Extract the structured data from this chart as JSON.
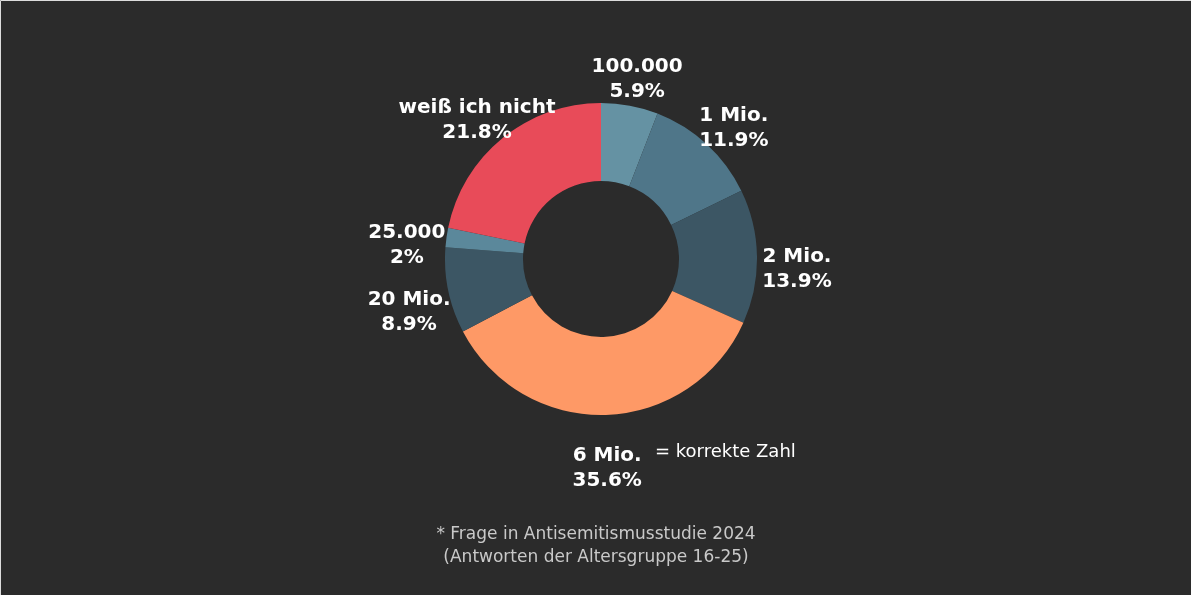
{
  "chart_data": {
    "type": "donut",
    "categories": [
      "100.000",
      "1 Mio.",
      "2 Mio.",
      "6 Mio.",
      "20 Mio.",
      "25.000",
      "weiß ich nicht"
    ],
    "values": [
      5.9,
      11.9,
      13.9,
      35.6,
      8.9,
      2,
      21.8
    ],
    "value_labels": [
      "5.9%",
      "11.9%",
      "13.9%",
      "35.6%",
      "8.9%",
      "2%",
      "21.8%"
    ],
    "colors": [
      "#6592a3",
      "#4f7689",
      "#3c5664",
      "#fe9966",
      "#3c5664",
      "#5b889b",
      "#e84b59"
    ],
    "annotations": [
      "= korrekte Zahl",
      "* Frage in Antisemitismusstudie 2024",
      "(Antworten der Altersgruppe 16-25)"
    ]
  }
}
